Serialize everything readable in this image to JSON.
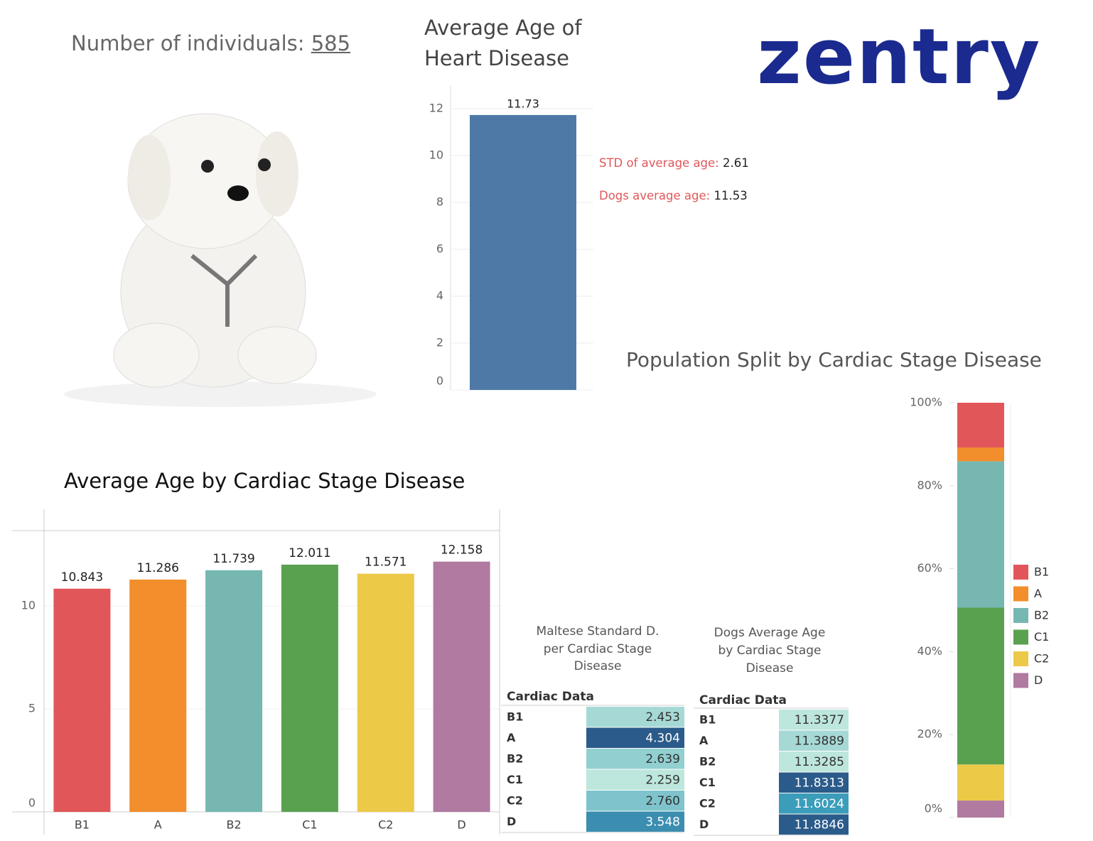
{
  "header": {
    "label": "Number of individuals:",
    "count": "585"
  },
  "logo": "zentry",
  "chart_data": [
    {
      "type": "bar",
      "title": "Average Age of Heart Disease",
      "categories": [
        null
      ],
      "values": [
        11.73
      ],
      "color": "#4e79a7",
      "ylim": [
        0,
        13
      ],
      "yticks": [
        0,
        2,
        4,
        6,
        8,
        10,
        12
      ],
      "grid": true,
      "annotations": [
        {
          "label": "STD of average age:",
          "value": "2.61"
        },
        {
          "label": "Dogs average age:",
          "value": "11.53"
        }
      ]
    },
    {
      "type": "bar",
      "title": "Average Age by Cardiac Stage Disease",
      "categories": [
        "B1",
        "A",
        "B2",
        "C1",
        "C2",
        "D"
      ],
      "values": [
        10.843,
        11.286,
        11.739,
        12.011,
        11.571,
        12.158
      ],
      "colors": [
        "#e15759",
        "#f28e2b",
        "#76b7b2",
        "#59a14f",
        "#edc948",
        "#b07aa1"
      ],
      "ylim": [
        0,
        14.7
      ],
      "yticks": [
        0,
        5,
        10
      ],
      "grid": true
    },
    {
      "type": "stacked_bar",
      "title": "Population Split by Cardiac Stage Disease",
      "series": [
        {
          "name": "B1",
          "color": "#e15759",
          "values": [
            10.8
          ]
        },
        {
          "name": "A",
          "color": "#f28e2b",
          "values": [
            3.3
          ]
        },
        {
          "name": "B2",
          "color": "#76b7b2",
          "values": [
            35.3
          ]
        },
        {
          "name": "C1",
          "color": "#59a14f",
          "values": [
            37.8
          ]
        },
        {
          "name": "C2",
          "color": "#edc948",
          "values": [
            8.7
          ]
        },
        {
          "name": "D",
          "color": "#b07aa1",
          "values": [
            4.1
          ]
        }
      ],
      "ylim": [
        0,
        100
      ],
      "yticks": [
        {
          "value": 0,
          "label": "0%"
        },
        {
          "value": 20,
          "label": "20%"
        },
        {
          "value": 40,
          "label": "40%"
        },
        {
          "value": 60,
          "label": "60%"
        },
        {
          "value": 80,
          "label": "80%"
        },
        {
          "value": 100,
          "label": "100%"
        }
      ],
      "legend": "right"
    }
  ],
  "tables": [
    {
      "title": "Maltese Standard D. per Cardiac Stage Disease",
      "header": "Cardiac Data",
      "rows": [
        [
          "B1",
          "2.453"
        ],
        [
          "A",
          "4.304"
        ],
        [
          "B2",
          "2.639"
        ],
        [
          "C1",
          "2.259"
        ],
        [
          "C2",
          "2.760"
        ],
        [
          "D",
          "3.548"
        ]
      ],
      "colors": [
        "#a6d9d5",
        "#2b5b8a",
        "#92cfd0",
        "#bde6dc",
        "#7fc4cc",
        "#3b8eb0"
      ]
    },
    {
      "title": "Dogs Average Age by Cardiac Stage Disease",
      "header": "Cardiac Data",
      "rows": [
        [
          "B1",
          "11.3377"
        ],
        [
          "A",
          "11.3889"
        ],
        [
          "B2",
          "11.3285"
        ],
        [
          "C1",
          "11.8313"
        ],
        [
          "C2",
          "11.6024"
        ],
        [
          "D",
          "11.8846"
        ]
      ],
      "colors": [
        "#bde6dc",
        "#a6d9d5",
        "#bde6dc",
        "#2b5b8a",
        "#3c9dbb",
        "#2b5b8a"
      ]
    }
  ]
}
